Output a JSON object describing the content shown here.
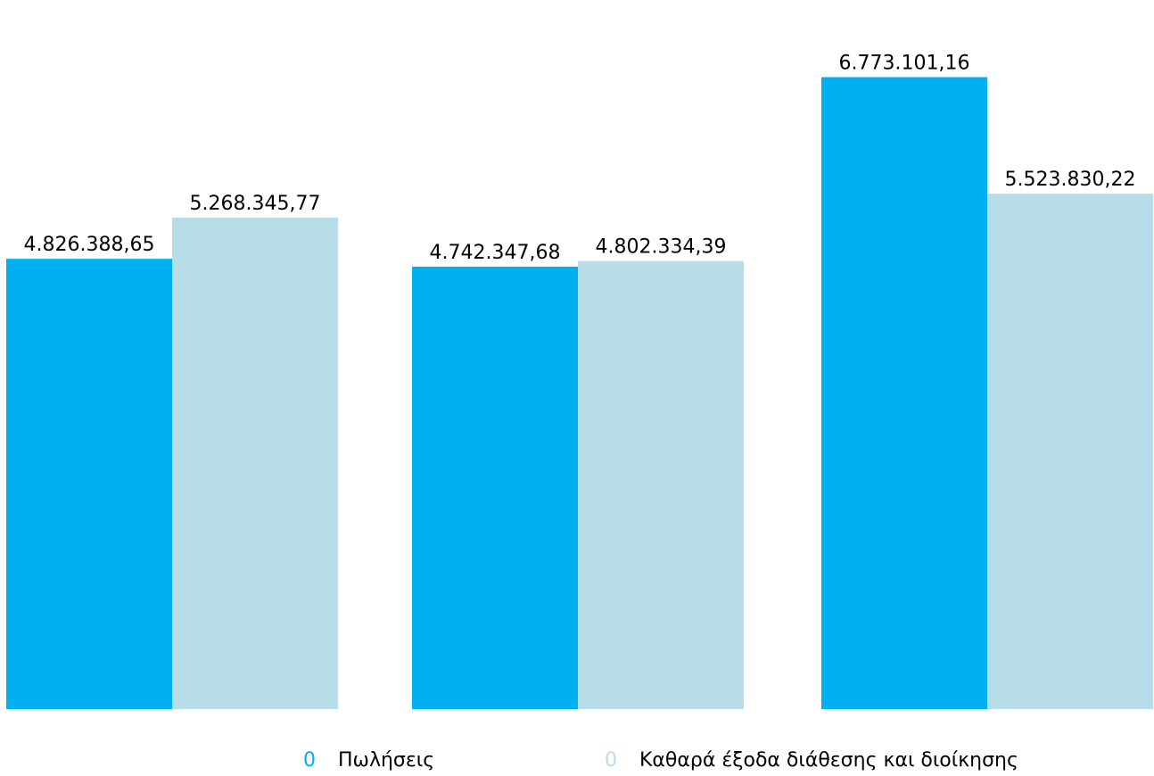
{
  "chart_data": {
    "type": "bar",
    "categories": [
      "",
      "",
      ""
    ],
    "series": [
      {
        "name": "Πωλήσεις",
        "color": "#00B0F0",
        "values": [
          4826388.65,
          4742347.68,
          6773101.16
        ],
        "labels": [
          "4.826.388,65",
          "4.742.347,68",
          "6.773.101,16"
        ]
      },
      {
        "name": "Καθαρά έξοδα διάθεσης και διοίκησης",
        "color": "#B7DDE8",
        "values": [
          5268345.77,
          4802334.39,
          5523830.22
        ],
        "labels": [
          "5.268.345,77",
          "4.802.334,39",
          "5.523.830,22"
        ]
      }
    ],
    "ylim": [
      0,
      7600000
    ],
    "grid": false,
    "legend_position": "bottom",
    "legend_marker": "0"
  }
}
